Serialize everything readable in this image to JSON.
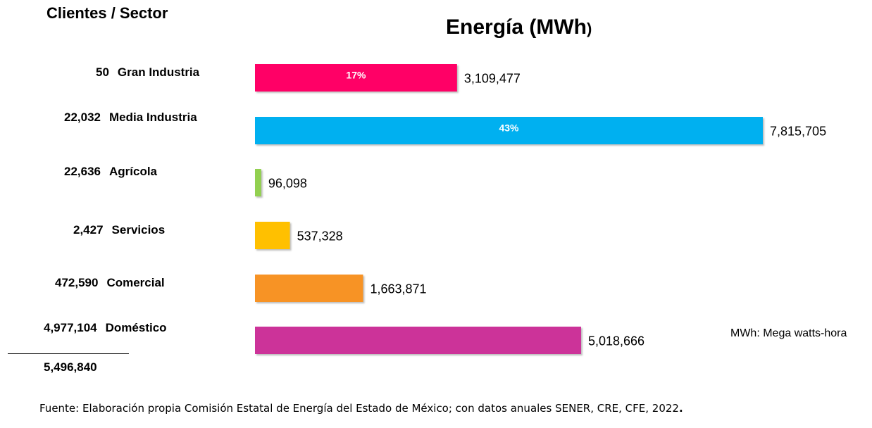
{
  "chart_data": {
    "type": "bar",
    "orientation": "horizontal",
    "title": "Energía (MWh",
    "title_suffix": ")",
    "categories": [
      "Gran Industria",
      "Media Industria",
      "Agrícola",
      "Servicios",
      "Comercial",
      "Doméstico"
    ],
    "series": [
      {
        "values": [
          3109477,
          7815705,
          96098,
          537328,
          1663871,
          5018666
        ],
        "value_labels": [
          "3,109,477",
          "7,815,705",
          "96,098",
          "537,328",
          "1,663,871",
          "5,018,666"
        ],
        "percent_labels": [
          "17%",
          "43%",
          "",
          "",
          "",
          ""
        ],
        "colors": [
          "#ff0066",
          "#00b0f0",
          "#92d050",
          "#ffc000",
          "#f79325",
          "#cc3399"
        ]
      }
    ],
    "xlim": [
      0,
      7815705
    ],
    "grid": false,
    "legend": "none"
  },
  "left_panel": {
    "heading": "Clientes / Sector",
    "rows": [
      {
        "clients": "50",
        "sector": "Gran Industria"
      },
      {
        "clients": "22,032",
        "sector": "Media Industria"
      },
      {
        "clients": "22,636",
        "sector": "Agrícola"
      },
      {
        "clients": "2,427",
        "sector": "Servicios"
      },
      {
        "clients": "472,590",
        "sector": "Comercial"
      },
      {
        "clients": "4,977,104",
        "sector": "Doméstico"
      }
    ],
    "total": "5,496,840"
  },
  "units_note": "MWh: Mega watts-hora",
  "source_note": "Fuente: Elaboración propia Comisión Estatal de Energía del Estado de México; con  datos anuales SENER, CRE, CFE, 2022",
  "source_note_end": "."
}
